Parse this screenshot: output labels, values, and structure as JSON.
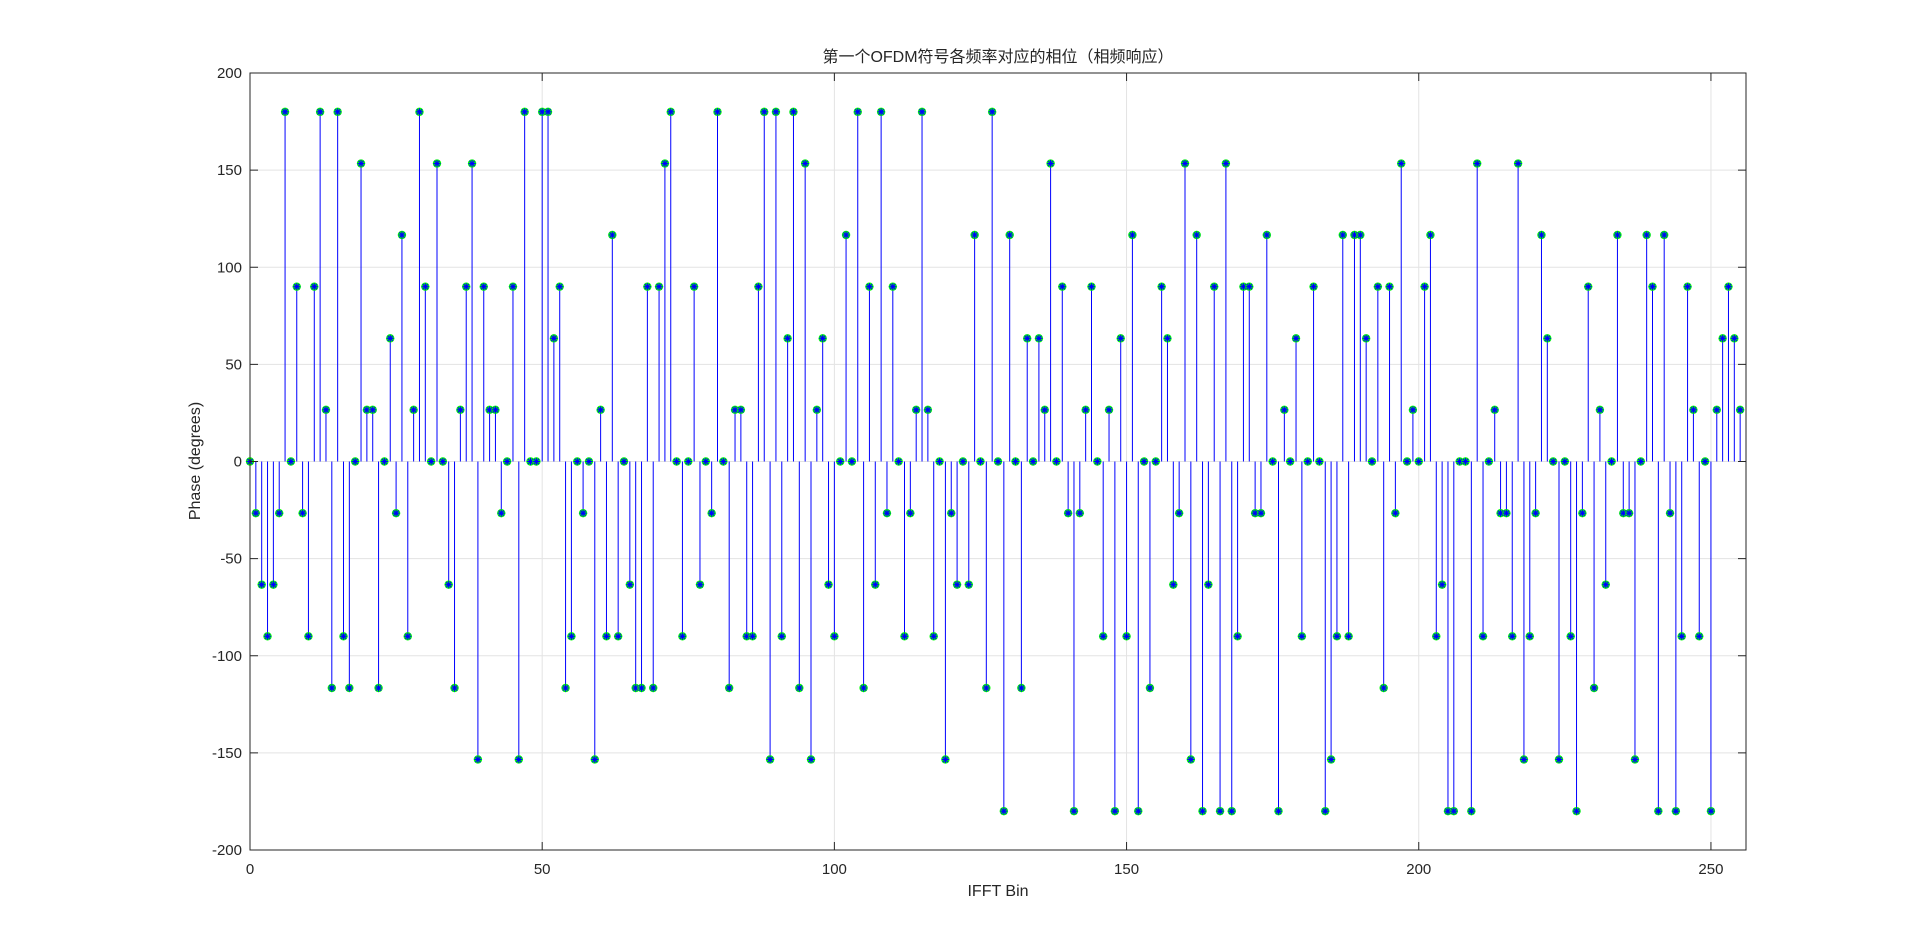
{
  "chart_data": {
    "type": "stem",
    "title": "第一个OFDM符号各频率对应的相位（相频响应）",
    "xlabel": "IFFT Bin",
    "ylabel": "Phase (degrees)",
    "xlim": [
      0,
      256
    ],
    "ylim": [
      -200,
      200
    ],
    "xticks": [
      0,
      50,
      100,
      150,
      200,
      250
    ],
    "yticks": [
      -200,
      -150,
      -100,
      -50,
      0,
      50,
      100,
      150,
      200
    ],
    "xtick_labels": [
      "0",
      "50",
      "100",
      "150",
      "200",
      "250"
    ],
    "ytick_labels": [
      "-200",
      "-150",
      "-100",
      "-50",
      "0",
      "50",
      "100",
      "150",
      "200"
    ],
    "grid": true,
    "colors": {
      "stem": "#0000ff",
      "marker_fill": "#00ff00",
      "marker_star": "#0000ff",
      "axis": "#262626",
      "grid": "#e3e3e3"
    },
    "x_start": 0,
    "values": [
      0,
      -26.6,
      -63.4,
      -90,
      -63.4,
      -26.6,
      180,
      0,
      90,
      -26.6,
      -90,
      90,
      180,
      26.6,
      -116.6,
      180,
      -90,
      -116.6,
      0,
      153.4,
      26.6,
      26.6,
      -116.6,
      0,
      63.4,
      -26.6,
      116.6,
      -90,
      26.6,
      180,
      90,
      0,
      153.4,
      0,
      -63.4,
      -116.6,
      26.6,
      90,
      153.4,
      -153.4,
      90,
      26.6,
      26.6,
      -26.6,
      0,
      90,
      -153.4,
      180,
      0,
      0,
      180,
      180,
      63.4,
      90,
      -116.6,
      -90,
      0,
      -26.6,
      0,
      -153.4,
      26.6,
      -90,
      116.6,
      -90,
      0,
      -63.4,
      -116.6,
      -116.6,
      90,
      -116.6,
      90,
      153.4,
      180,
      0,
      -90,
      0,
      90,
      -63.4,
      0,
      -26.6,
      180,
      0,
      -116.6,
      26.6,
      26.6,
      -90,
      -90,
      90,
      180,
      -153.4,
      180,
      -90,
      63.4,
      180,
      -116.6,
      153.4,
      -153.4,
      26.6,
      63.4,
      -63.4,
      -90,
      0,
      116.6,
      0,
      180,
      -116.6,
      90,
      -63.4,
      180,
      -26.6,
      90,
      0,
      -90,
      -26.6,
      26.6,
      180,
      26.6,
      -90,
      0,
      -153.4,
      -26.6,
      -63.4,
      0,
      -63.4,
      116.6,
      0,
      -116.6,
      180,
      0,
      -180,
      116.6,
      0,
      -116.6,
      63.4,
      0,
      63.4,
      26.6,
      153.4,
      0,
      90,
      -26.6,
      -180,
      -26.6,
      26.6,
      90,
      0,
      -90,
      26.6,
      -180,
      63.4,
      -90,
      116.6,
      -180,
      0,
      -116.6,
      0,
      90,
      63.4,
      -63.4,
      -26.6,
      153.4,
      -153.4,
      116.6,
      -180,
      -63.4,
      90,
      -180,
      153.4,
      -180,
      -90,
      90,
      90,
      -26.6,
      -26.6,
      116.6,
      0,
      -180,
      26.6,
      0,
      63.4,
      -90,
      0,
      90,
      0,
      -180,
      -153.4,
      -90,
      116.6,
      -90,
      116.6,
      116.6,
      63.4,
      0,
      90,
      -116.6,
      90,
      -26.6,
      153.4,
      0,
      26.6,
      0,
      90,
      116.6,
      -90,
      -63.4,
      -180,
      -180,
      0,
      0,
      -180,
      153.4,
      -90,
      0,
      26.6,
      -26.6,
      -26.6,
      -90,
      153.4,
      -153.4,
      -90,
      -26.6,
      116.6,
      63.4,
      0,
      -153.4,
      0,
      -90,
      -180,
      -26.6,
      90,
      -116.6,
      26.6,
      -63.4,
      0,
      116.6,
      -26.6,
      -26.6,
      -153.4,
      0,
      116.6,
      90,
      -180,
      116.6,
      -26.6,
      -180,
      -90,
      90,
      26.6,
      -90,
      0,
      -180,
      26.6,
      63.4,
      90,
      63.4,
      26.6
    ]
  }
}
